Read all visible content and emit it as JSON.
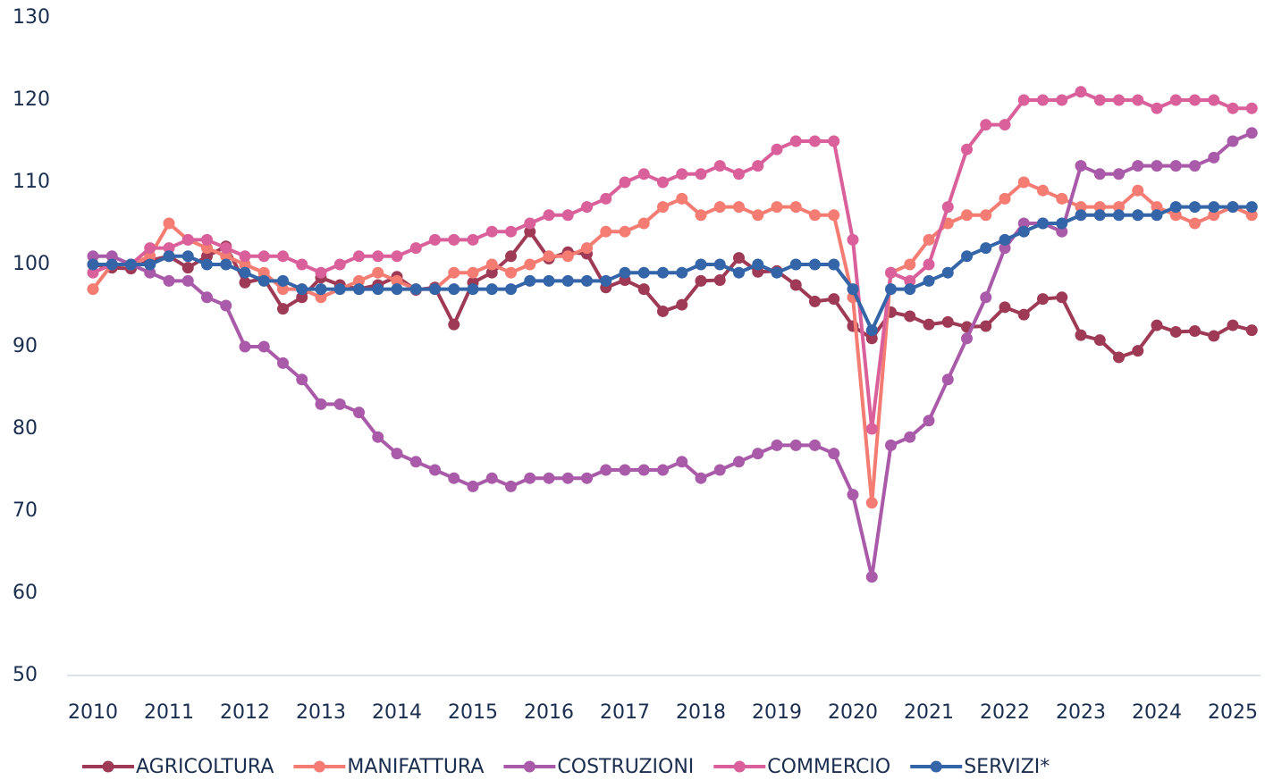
{
  "chart_data": {
    "type": "line",
    "categories": [
      "2010",
      null,
      null,
      null,
      "2011",
      null,
      null,
      null,
      "2012",
      null,
      null,
      null,
      "2013",
      null,
      null,
      null,
      "2014",
      null,
      null,
      null,
      "2015",
      null,
      null,
      null,
      "2016",
      null,
      null,
      null,
      "2017",
      null,
      null,
      null,
      "2018",
      null,
      null,
      null,
      "2019",
      null,
      null,
      null,
      "2020",
      null,
      null,
      null,
      "2021",
      null,
      null,
      null,
      "2022",
      null,
      null,
      null,
      "2023",
      null,
      null,
      null,
      "2024",
      null,
      null,
      null,
      "2025",
      null
    ],
    "ylim": [
      50,
      130
    ],
    "yticks": [
      50,
      60,
      70,
      80,
      90,
      100,
      110,
      120,
      130
    ],
    "grid": false,
    "legend": "bottom",
    "series": [
      {
        "name": "AGRICOLTURA",
        "color": "#9e3a55",
        "values": [
          100,
          99.6,
          99.5,
          100.5,
          101,
          99.6,
          101,
          102.2,
          97.8,
          98.3,
          94.6,
          96,
          98.4,
          97.5,
          97,
          97.5,
          98.5,
          96.9,
          97.2,
          92.7,
          97.8,
          99,
          101,
          104,
          100.7,
          101.5,
          101.3,
          97.2,
          98.1,
          97,
          94.3,
          95.1,
          98,
          98.1,
          100.8,
          99.1,
          99.2,
          97.5,
          95.5,
          95.8,
          92.5,
          91,
          94.2,
          93.7,
          92.7,
          93,
          92.4,
          92.5,
          94.8,
          93.9,
          95.8,
          96,
          91.4,
          90.8,
          88.7,
          89.5,
          92.6,
          91.8,
          91.9,
          91.3,
          92.6,
          92
        ]
      },
      {
        "name": "MANIFATTURA",
        "color": "#f47c72",
        "values": [
          97,
          100,
          100,
          101,
          105,
          103,
          102,
          101,
          100,
          99,
          97,
          97,
          96,
          97,
          98,
          99,
          98,
          97,
          97,
          99,
          99,
          100,
          99,
          100,
          101,
          101,
          102,
          104,
          104,
          105,
          107,
          108,
          106,
          107,
          107,
          106,
          107,
          107,
          106,
          106,
          96,
          71,
          99,
          100,
          103,
          105,
          106,
          106,
          108,
          110,
          109,
          108,
          107,
          107,
          107,
          109,
          107,
          106,
          105,
          106,
          107,
          106
        ]
      },
      {
        "name": "COSTRUZIONI",
        "color": "#a95aa8",
        "values": [
          101,
          101,
          100,
          99,
          98,
          98,
          96,
          95,
          90,
          90,
          88,
          86,
          83,
          83,
          82,
          79,
          77,
          76,
          75,
          74,
          73,
          74,
          73,
          74,
          74,
          74,
          74,
          75,
          75,
          75,
          75,
          76,
          74,
          75,
          76,
          77,
          78,
          78,
          78,
          77,
          72,
          62,
          78,
          79,
          81,
          86,
          91,
          96,
          102,
          105,
          105,
          104,
          112,
          111,
          111,
          112,
          112,
          112,
          112,
          113,
          115,
          116
        ]
      },
      {
        "name": "COMMERCIO",
        "color": "#d9609a",
        "values": [
          99,
          100,
          100,
          102,
          102,
          103,
          103,
          102,
          101,
          101,
          101,
          100,
          99,
          100,
          101,
          101,
          101,
          102,
          103,
          103,
          103,
          104,
          104,
          105,
          106,
          106,
          107,
          108,
          110,
          111,
          110,
          111,
          111,
          112,
          111,
          112,
          114,
          115,
          115,
          115,
          103,
          80,
          99,
          98,
          100,
          107,
          114,
          117,
          117,
          120,
          120,
          120,
          121,
          120,
          120,
          120,
          119,
          120,
          120,
          120,
          119,
          119
        ]
      },
      {
        "name": "SERVIZI*",
        "color": "#3465a8",
        "values": [
          100,
          100,
          100,
          100,
          101,
          101,
          100,
          100,
          99,
          98,
          98,
          97,
          97,
          97,
          97,
          97,
          97,
          97,
          97,
          97,
          97,
          97,
          97,
          98,
          98,
          98,
          98,
          98,
          99,
          99,
          99,
          99,
          100,
          100,
          99,
          100,
          99,
          100,
          100,
          100,
          97,
          92,
          97,
          97,
          98,
          99,
          101,
          102,
          103,
          104,
          105,
          105,
          106,
          106,
          106,
          106,
          106,
          107,
          107,
          107,
          107,
          107
        ]
      }
    ]
  }
}
